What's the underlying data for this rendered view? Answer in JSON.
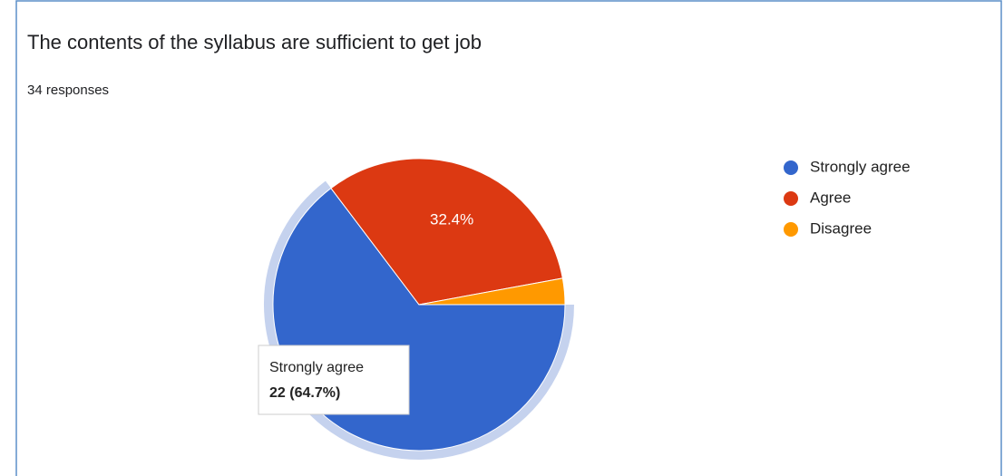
{
  "chart_data": {
    "type": "pie",
    "title": "The contents of the syllabus are sufficient to get job",
    "subtitle": "34 responses",
    "categories": [
      "Strongly agree",
      "Agree",
      "Disagree"
    ],
    "values": [
      64.7,
      32.4,
      2.9
    ],
    "value_labels": [
      null,
      "32.4%",
      null
    ],
    "colors": [
      "#3366cc",
      "#dc3912",
      "#ff9900"
    ],
    "legend": "right",
    "tooltip": {
      "label": "22 (64.7%)"
    }
  }
}
